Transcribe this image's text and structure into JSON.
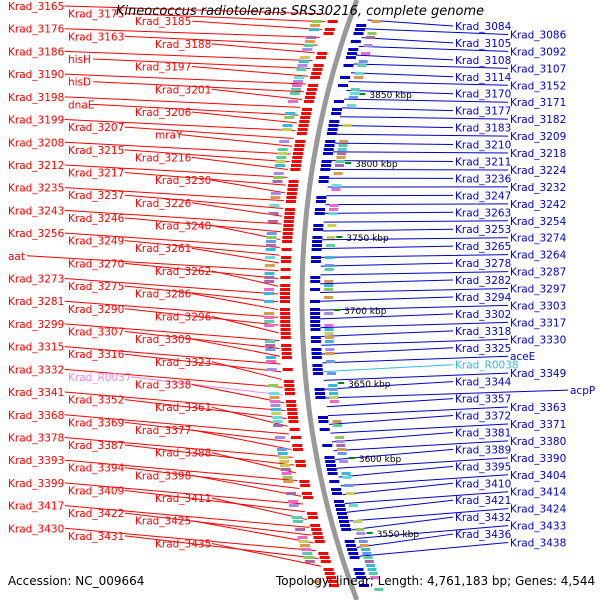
{
  "title": "Kineococcus radiotolerans SRS30216, complete genome",
  "footer": {
    "accession": "Accession: NC_009664",
    "summary": "Topology: linear; Length: 4,761,183 bp; Genes: 4,544"
  },
  "colors": {
    "left_strand": "#ff0000",
    "right_strand": "#0000cc",
    "rna": "#ee88ee",
    "rna_right": "#33bbdd",
    "backbone": "#999999",
    "tick": "#008800"
  },
  "ticks": [
    "3850 kbp",
    "3800 kbp",
    "3750 kbp",
    "3700 kbp",
    "3650 kbp",
    "3600 kbp",
    "3550 kbp"
  ],
  "left_labels": [
    "Krad_3165",
    "Krad_3175",
    "Krad_3185",
    "Krad_3176",
    "Krad_3163",
    "Krad_3188",
    "Krad_3186",
    "hisH",
    "Krad_3197",
    "Krad_3190",
    "hisD",
    "Krad_3201",
    "Krad_3198",
    "dnaE",
    "Krad_3206",
    "Krad_3199",
    "Krad_3207",
    "mraY",
    "Krad_3208",
    "Krad_3215",
    "Krad_3216",
    "Krad_3212",
    "Krad_3217",
    "Krad_3230",
    "Krad_3235",
    "Krad_3237",
    "Krad_3226",
    "Krad_3243",
    "Krad_3246",
    "Krad_3240",
    "Krad_3256",
    "Krad_3249",
    "Krad_3261",
    "aat",
    "Krad_3270",
    "Krad_3262",
    "Krad_3273",
    "Krad_3275",
    "Krad_3286",
    "Krad_3281",
    "Krad_3290",
    "Krad_3296",
    "Krad_3299",
    "Krad_3307",
    "Krad_3309",
    "Krad_3315",
    "Krad_3316",
    "Krad_3323",
    "Krad_3332",
    "Krad_R0037",
    "Krad_3338",
    "Krad_3341",
    "Krad_3352",
    "Krad_3361",
    "Krad_3368",
    "Krad_3369",
    "Krad_3377",
    "Krad_3378",
    "Krad_3387",
    "Krad_3388",
    "Krad_3393",
    "Krad_3394",
    "Krad_3398",
    "Krad_3399",
    "Krad_3409",
    "Krad_3411",
    "Krad_3417",
    "Krad_3422",
    "Krad_3425",
    "Krad_3430",
    "Krad_3431",
    "Krad_3435"
  ],
  "right_labels": [
    "Krad_3084",
    "Krad_3086",
    "Krad_3105",
    "Krad_3092",
    "Krad_3108",
    "Krad_3107",
    "Krad_3114",
    "Krad_3152",
    "Krad_3170",
    "Krad_3171",
    "Krad_3177",
    "Krad_3182",
    "Krad_3183",
    "Krad_3209",
    "Krad_3210",
    "Krad_3218",
    "Krad_3211",
    "Krad_3224",
    "Krad_3236",
    "Krad_3232",
    "Krad_3247",
    "Krad_3242",
    "Krad_3263",
    "Krad_3254",
    "Krad_3253",
    "Krad_3274",
    "Krad_3265",
    "Krad_3264",
    "Krad_3278",
    "Krad_3287",
    "Krad_3282",
    "Krad_3297",
    "Krad_3294",
    "Krad_3303",
    "Krad_3302",
    "Krad_3317",
    "Krad_3318",
    "Krad_3330",
    "Krad_3325",
    "aceE",
    "Krad_R0038",
    "Krad_3349",
    "Krad_3344",
    "acpP",
    "Krad_3357",
    "Krad_3363",
    "Krad_3372",
    "Krad_3371",
    "Krad_3381",
    "Krad_3380",
    "Krad_3389",
    "Krad_3390",
    "Krad_3395",
    "Krad_3404",
    "Krad_3410",
    "Krad_3414",
    "Krad_3421",
    "Krad_3424",
    "Krad_3432",
    "Krad_3433",
    "Krad_3436",
    "Krad_3438"
  ]
}
